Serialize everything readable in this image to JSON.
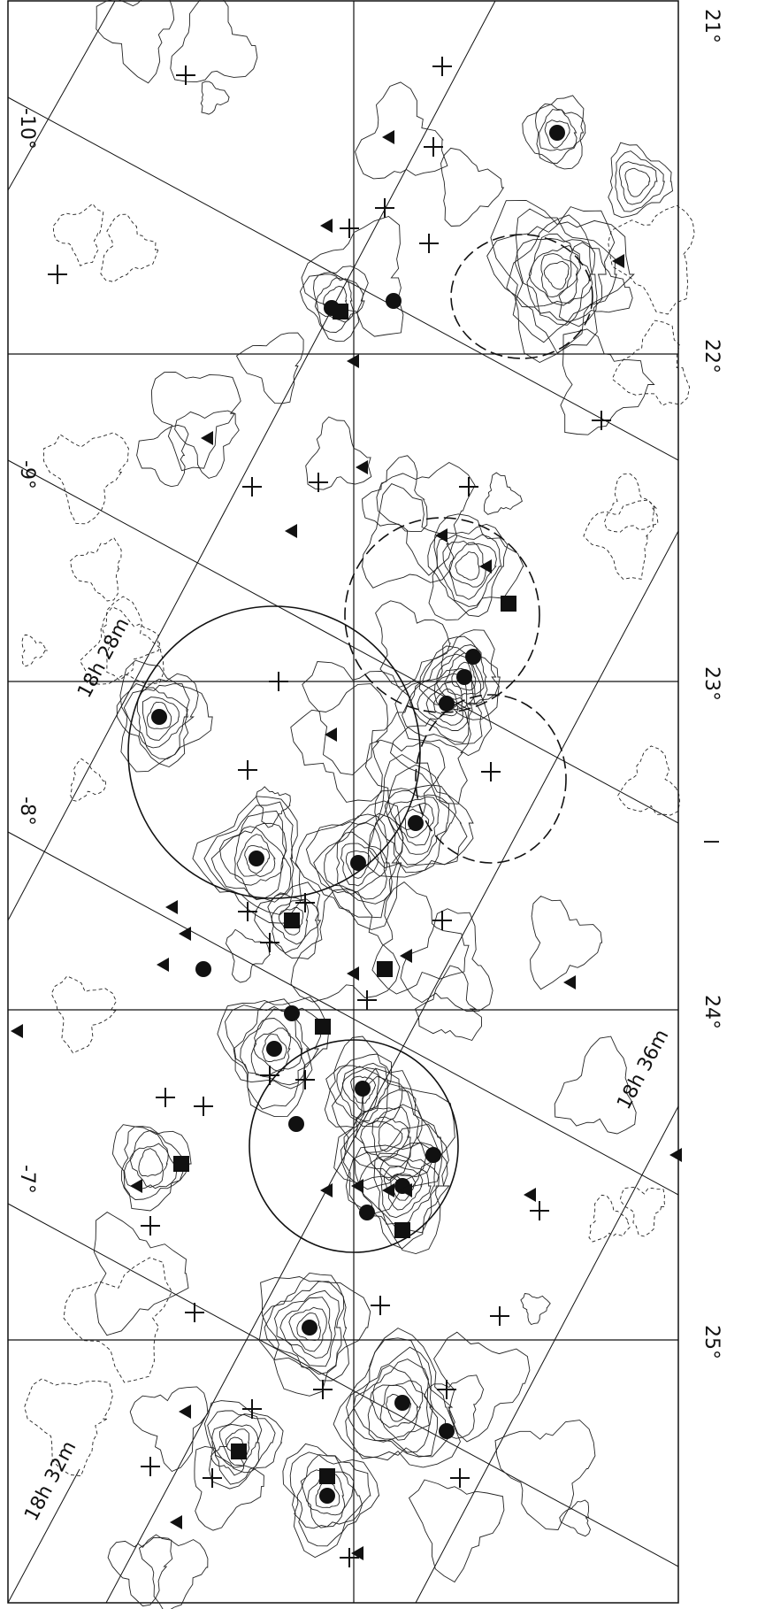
{
  "map": {
    "longitude_labels": [
      "21°",
      "22°",
      "23°",
      "24°",
      "25°"
    ],
    "latitude_labels": [
      "-10°",
      "-9°",
      "-8°",
      "-7°"
    ],
    "ra_labels": [
      "18h 28m",
      "18h 32m",
      "18h 36m"
    ],
    "axis_label": "l"
  }
}
